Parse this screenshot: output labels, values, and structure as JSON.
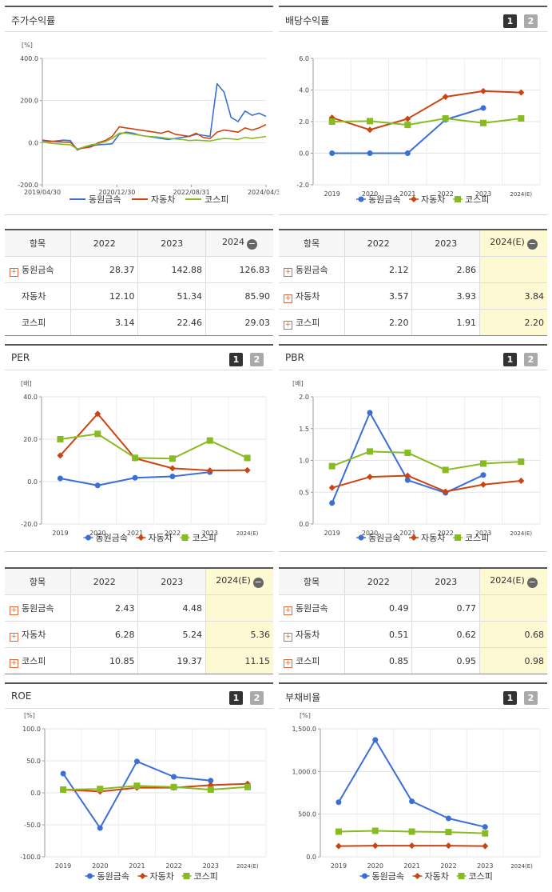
{
  "colors": {
    "company": "#3a6fd8",
    "auto": "#cc4411",
    "kospi": "#88bb22"
  },
  "panels": {
    "stock": {
      "title": "주가수익률",
      "unit": "[%]",
      "legend": [
        "동원금속",
        "자동차",
        "코스피"
      ],
      "chart_data": {
        "type": "line",
        "x_ticks": [
          "2019/04/30",
          "2020/12/30",
          "2022/08/31",
          "2024/04/30"
        ],
        "y_ticks": [
          "400.0",
          "200.0",
          "0.0",
          "-200.0"
        ],
        "ylim": [
          -200,
          400
        ],
        "series": [
          {
            "name": "동원금속",
            "values": [
              10,
              5,
              8,
              12,
              10,
              -35,
              -20,
              -15,
              -10,
              -8,
              -5,
              40,
              50,
              45,
              35,
              30,
              25,
              20,
              15,
              20,
              25,
              30,
              40,
              35,
              30,
              280,
              240,
              120,
              100,
              150,
              130,
              140,
              125
            ]
          },
          {
            "name": "자동차",
            "values": [
              12,
              8,
              5,
              3,
              2,
              -30,
              -25,
              -20,
              0,
              10,
              30,
              75,
              70,
              65,
              60,
              55,
              50,
              45,
              55,
              40,
              35,
              30,
              45,
              25,
              20,
              50,
              60,
              55,
              50,
              70,
              60,
              70,
              86
            ]
          },
          {
            "name": "코스피",
            "values": [
              3,
              -2,
              -5,
              -8,
              -10,
              -30,
              -20,
              -10,
              -5,
              5,
              20,
              45,
              45,
              40,
              35,
              30,
              28,
              25,
              20,
              18,
              15,
              10,
              12,
              10,
              8,
              15,
              20,
              18,
              15,
              25,
              20,
              25,
              29
            ]
          }
        ]
      }
    },
    "dividend": {
      "title": "배당수익률",
      "unit": "",
      "buttons": [
        "1",
        "2"
      ],
      "legend": [
        "동원금속",
        "자동차",
        "코스피"
      ],
      "chart_data": {
        "type": "line",
        "categories": [
          "2019",
          "2020",
          "2021",
          "2022",
          "2023",
          "2024(E)"
        ],
        "y_ticks": [
          "6.0",
          "4.0",
          "2.0",
          "0.0",
          "-2.0"
        ],
        "ylim": [
          -2,
          6
        ],
        "series": [
          {
            "name": "동원금속",
            "values": [
              0.0,
              0.0,
              0.0,
              2.12,
              2.86,
              null
            ]
          },
          {
            "name": "자동차",
            "values": [
              2.25,
              1.48,
              2.18,
              3.57,
              3.93,
              3.84
            ]
          },
          {
            "name": "코스피",
            "values": [
              2.0,
              2.03,
              1.79,
              2.2,
              1.91,
              2.2
            ]
          }
        ]
      }
    },
    "per": {
      "title": "PER",
      "unit": "[배]",
      "buttons": [
        "1",
        "2"
      ],
      "legend": [
        "동원금속",
        "자동차",
        "코스피"
      ],
      "chart_data": {
        "type": "line",
        "categories": [
          "2019",
          "2020",
          "2021",
          "2022",
          "2023",
          "2024(E)"
        ],
        "y_ticks": [
          "40.0",
          "20.0",
          "0.0",
          "-20.0"
        ],
        "ylim": [
          -20,
          40
        ],
        "series": [
          {
            "name": "동원금속",
            "values": [
              1.5,
              -1.8,
              1.8,
              2.43,
              4.48,
              null
            ]
          },
          {
            "name": "자동차",
            "values": [
              12.3,
              32.0,
              11.0,
              6.28,
              5.24,
              5.36
            ]
          },
          {
            "name": "코스피",
            "values": [
              20.0,
              22.5,
              11.2,
              10.85,
              19.37,
              11.15
            ]
          }
        ]
      }
    },
    "pbr": {
      "title": "PBR",
      "unit": "[배]",
      "buttons": [
        "1",
        "2"
      ],
      "legend": [
        "동원금속",
        "자동차",
        "코스피"
      ],
      "chart_data": {
        "type": "line",
        "categories": [
          "2019",
          "2020",
          "2021",
          "2022",
          "2023",
          "2024(E)"
        ],
        "y_ticks": [
          "2.0",
          "1.5",
          "1.0",
          "0.5",
          "0.0"
        ],
        "ylim": [
          0,
          2
        ],
        "series": [
          {
            "name": "동원금속",
            "values": [
              0.33,
              1.75,
              0.69,
              0.49,
              0.77,
              null
            ]
          },
          {
            "name": "자동차",
            "values": [
              0.57,
              0.74,
              0.76,
              0.51,
              0.62,
              0.68
            ]
          },
          {
            "name": "코스피",
            "values": [
              0.91,
              1.14,
              1.12,
              0.85,
              0.95,
              0.98
            ]
          }
        ]
      }
    },
    "roe": {
      "title": "ROE",
      "unit": "[%]",
      "buttons": [
        "1",
        "2"
      ],
      "legend": [
        "동원금속",
        "자동차",
        "코스피"
      ],
      "chart_data": {
        "type": "line",
        "categories": [
          "2019",
          "2020",
          "2021",
          "2022",
          "2023",
          "2024(E)"
        ],
        "y_ticks": [
          "100.0",
          "50.0",
          "0.0",
          "-50.0",
          "-100.0"
        ],
        "ylim": [
          -100,
          100
        ],
        "series": [
          {
            "name": "동원금속",
            "values": [
              30,
              -55,
              49,
              25,
              19,
              null
            ]
          },
          {
            "name": "자동차",
            "values": [
              5,
              2,
              8,
              8,
              12,
              14
            ]
          },
          {
            "name": "코스피",
            "values": [
              5,
              6,
              11,
              9,
              5,
              9
            ]
          }
        ]
      }
    },
    "debt": {
      "title": "부채비율",
      "unit": "[%]",
      "buttons": [
        "1",
        "2"
      ],
      "legend": [
        "동원금속",
        "자동차",
        "코스피"
      ],
      "chart_data": {
        "type": "line",
        "categories": [
          "2019",
          "2020",
          "2021",
          "2022",
          "2023",
          "2024(E)"
        ],
        "y_ticks": [
          "1,500.0",
          "1,000.0",
          "500.0",
          "0.0"
        ],
        "ylim": [
          0,
          1500
        ],
        "series": [
          {
            "name": "동원금속",
            "values": [
              640,
              1370,
              650,
              450,
              350,
              null
            ]
          },
          {
            "name": "자동차",
            "values": [
              125,
              130,
              130,
              130,
              125,
              null
            ]
          },
          {
            "name": "코스피",
            "values": [
              295,
              305,
              295,
              290,
              275,
              null
            ]
          }
        ]
      }
    }
  },
  "tables": {
    "stock": {
      "headers": [
        "항목",
        "2022",
        "2023",
        "2024"
      ],
      "rows": [
        {
          "name": "동원금속",
          "plus": true,
          "v": [
            "28.37",
            "142.88",
            "126.83"
          ]
        },
        {
          "name": "자동차",
          "plus": false,
          "v": [
            "12.10",
            "51.34",
            "85.90"
          ]
        },
        {
          "name": "코스피",
          "plus": false,
          "v": [
            "3.14",
            "22.46",
            "29.03"
          ]
        }
      ]
    },
    "dividend": {
      "headers": [
        "항목",
        "2022",
        "2023",
        "2024(E)"
      ],
      "rows": [
        {
          "name": "동원금속",
          "plus": true,
          "v": [
            "2.12",
            "2.86",
            ""
          ]
        },
        {
          "name": "자동차",
          "plus": true,
          "v": [
            "3.57",
            "3.93",
            "3.84"
          ]
        },
        {
          "name": "코스피",
          "plus": true,
          "v": [
            "2.20",
            "1.91",
            "2.20"
          ]
        }
      ]
    },
    "per": {
      "headers": [
        "항목",
        "2022",
        "2023",
        "2024(E)"
      ],
      "rows": [
        {
          "name": "동원금속",
          "plus": true,
          "v": [
            "2.43",
            "4.48",
            ""
          ]
        },
        {
          "name": "자동차",
          "plus": true,
          "v": [
            "6.28",
            "5.24",
            "5.36"
          ]
        },
        {
          "name": "코스피",
          "plus": true,
          "v": [
            "10.85",
            "19.37",
            "11.15"
          ]
        }
      ]
    },
    "pbr": {
      "headers": [
        "항목",
        "2022",
        "2023",
        "2024(E)"
      ],
      "rows": [
        {
          "name": "동원금속",
          "plus": true,
          "v": [
            "0.49",
            "0.77",
            ""
          ]
        },
        {
          "name": "자동차",
          "plus": true,
          "v": [
            "0.51",
            "0.62",
            "0.68"
          ]
        },
        {
          "name": "코스피",
          "plus": true,
          "v": [
            "0.85",
            "0.95",
            "0.98"
          ]
        }
      ]
    }
  }
}
